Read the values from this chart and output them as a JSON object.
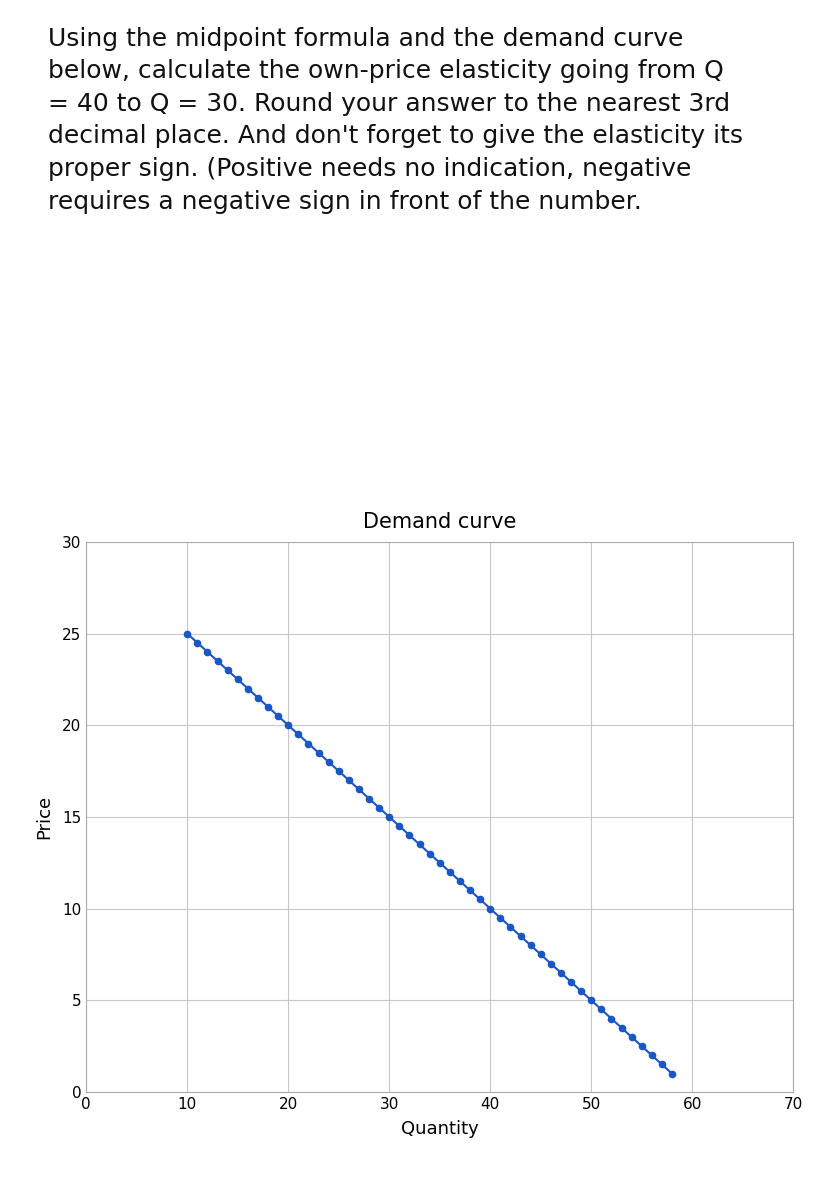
{
  "title_text": "Using the midpoint formula and the demand curve\nbelow, calculate the own-price elasticity going from Q\n= 40 to Q = 30. Round your answer to the nearest 3rd\ndecimal place. And don't forget to give the elasticity its\nproper sign. (Positive needs no indication, negative\nrequires a negative sign in front of the number.",
  "chart_title": "Demand curve",
  "xlabel": "Quantity",
  "ylabel": "Price",
  "xlim": [
    0,
    70
  ],
  "ylim": [
    0,
    30
  ],
  "xticks": [
    0,
    10,
    20,
    30,
    40,
    50,
    60,
    70
  ],
  "yticks": [
    0,
    5,
    10,
    15,
    20,
    25,
    30
  ],
  "line_color": "#1a56c4",
  "line_width": 1.5,
  "marker": "o",
  "marker_size": 4.5,
  "background_color": "#ffffff",
  "title_fontsize": 18,
  "chart_title_fontsize": 15,
  "axis_label_fontsize": 13,
  "tick_fontsize": 11,
  "grid_color": "#c8c8c8",
  "grid_alpha": 1.0,
  "q_start": 10,
  "q_end": 58,
  "p_start": 25,
  "p_end": 1
}
